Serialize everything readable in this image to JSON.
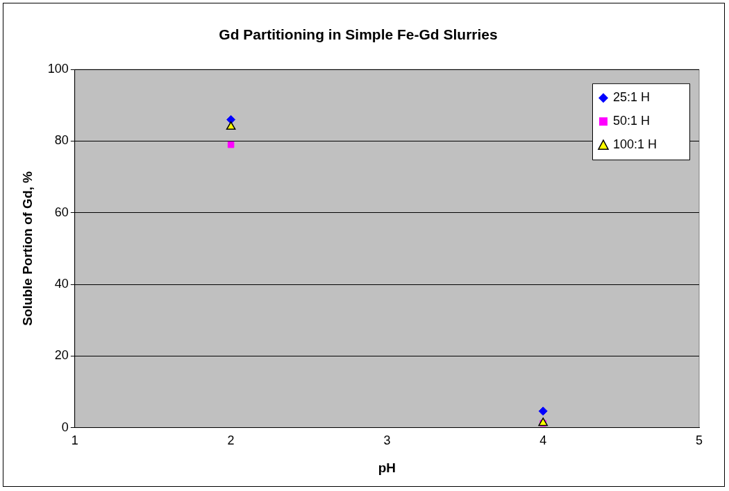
{
  "chart_data": {
    "type": "scatter",
    "title": "Gd Partitioning in Simple Fe-Gd Slurries",
    "xlabel": "pH",
    "ylabel": "Soluble Portion of Gd, %",
    "x": [
      2,
      4
    ],
    "series": [
      {
        "name": "25:1 H",
        "color": "#0000ff",
        "marker": "diamond",
        "values": [
          86,
          4.6
        ]
      },
      {
        "name": "50:1 H",
        "color": "#ff00ff",
        "marker": "square",
        "values": [
          79,
          1.2
        ]
      },
      {
        "name": "100:1 H",
        "color": "#ffff00",
        "marker": "triangle",
        "values": [
          84,
          1.3
        ]
      }
    ],
    "xlim": [
      1,
      5
    ],
    "xticks": [
      1,
      2,
      3,
      4,
      5
    ],
    "ylim": [
      0,
      100
    ],
    "yticks": [
      0,
      20,
      40,
      60,
      80,
      100
    ],
    "grid": "y",
    "legend": "top right"
  }
}
